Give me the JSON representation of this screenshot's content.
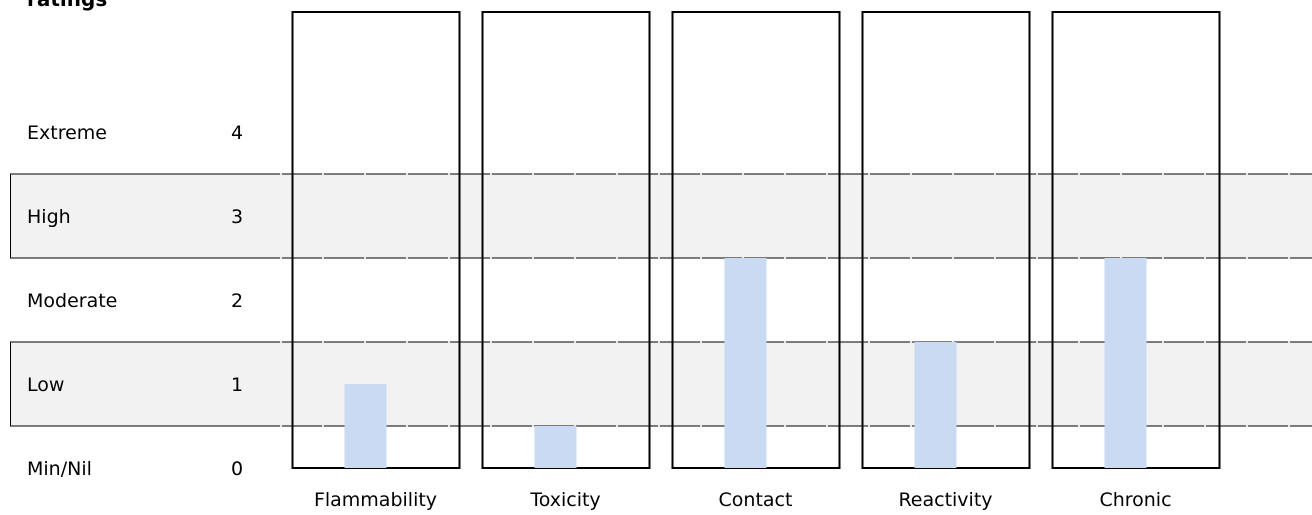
{
  "chart_data": {
    "type": "bar",
    "title": "ratings",
    "levels": [
      {
        "label": "Extreme",
        "value": 4
      },
      {
        "label": "High",
        "value": 3
      },
      {
        "label": "Moderate",
        "value": 2
      },
      {
        "label": "Low",
        "value": 1
      },
      {
        "label": "Min/Nil",
        "value": 0
      }
    ],
    "categories": [
      "Flammability",
      "Toxicity",
      "Contact",
      "Reactivity",
      "Chronic"
    ],
    "values": [
      1,
      0.5,
      2.5,
      1.5,
      2.5
    ],
    "ylim": [
      0,
      5
    ],
    "grid": true,
    "bar_color": "#c9daf2",
    "band_color": "#f2f2f2",
    "frame_color": "#000000"
  }
}
